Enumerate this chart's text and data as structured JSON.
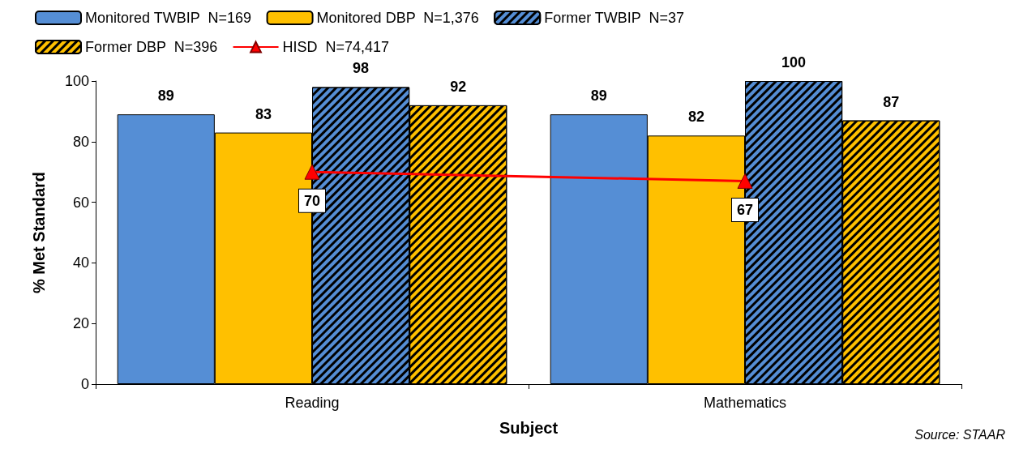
{
  "chart_data": {
    "type": "bar",
    "xlabel": "Subject",
    "ylabel": "% Met Standard",
    "categories": [
      "Reading",
      "Mathematics"
    ],
    "series": [
      {
        "name": "Monitored TWBIP  N=169",
        "color": "#558ed5",
        "values": [
          89,
          89
        ]
      },
      {
        "name": "Monitored DBP  N=1,376",
        "color": "#ffc000",
        "values": [
          83,
          82
        ]
      },
      {
        "name": "Former TWBIP  N=37",
        "color": "#558ed5",
        "values": [
          98,
          100
        ]
      },
      {
        "name": "Former DBP  N=396",
        "color": "#ffc000",
        "values": [
          92,
          87
        ]
      },
      {
        "name": "HISD  N=74,417",
        "color": "#ff0000",
        "values": [
          70,
          67
        ],
        "type": "line",
        "marker": "triangle"
      }
    ],
    "ylim": [
      0,
      100
    ],
    "yticks": [
      0,
      20,
      40,
      60,
      80,
      100
    ],
    "grid": false,
    "legend": "top left",
    "data_labels": true,
    "annotations": [
      "Source: STAAR"
    ]
  }
}
